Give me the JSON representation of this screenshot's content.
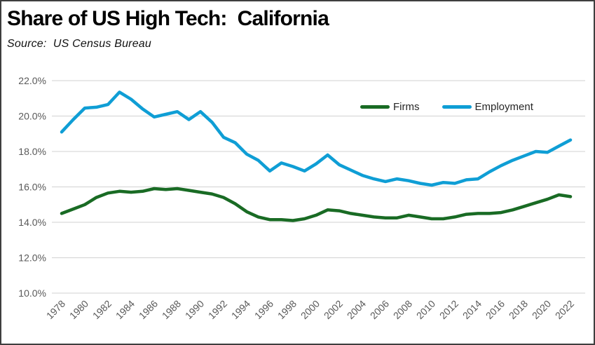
{
  "header": {
    "title": "Share of US High Tech:  California",
    "source": "Source:  US Census Bureau"
  },
  "chart_data": {
    "type": "line",
    "title": "Share of US High Tech:  California",
    "source_note": "Source:  US Census Bureau",
    "x": [
      1978,
      1979,
      1980,
      1981,
      1982,
      1983,
      1984,
      1985,
      1986,
      1987,
      1988,
      1989,
      1990,
      1991,
      1992,
      1993,
      1994,
      1995,
      1996,
      1997,
      1998,
      1999,
      2000,
      2001,
      2002,
      2003,
      2004,
      2005,
      2006,
      2007,
      2008,
      2009,
      2010,
      2011,
      2012,
      2013,
      2014,
      2015,
      2016,
      2017,
      2018,
      2019,
      2020,
      2021,
      2022
    ],
    "series": [
      {
        "name": "Firms",
        "color": "#196B24",
        "values": [
          14.5,
          14.75,
          15.0,
          15.4,
          15.65,
          15.75,
          15.7,
          15.75,
          15.9,
          15.85,
          15.9,
          15.8,
          15.7,
          15.6,
          15.4,
          15.05,
          14.6,
          14.3,
          14.15,
          14.15,
          14.1,
          14.2,
          14.4,
          14.7,
          14.65,
          14.5,
          14.4,
          14.3,
          14.25,
          14.25,
          14.4,
          14.3,
          14.2,
          14.2,
          14.3,
          14.45,
          14.5,
          14.5,
          14.55,
          14.7,
          14.9,
          15.1,
          15.3,
          15.55,
          15.45
        ]
      },
      {
        "name": "Employment",
        "color": "#0F9ED5",
        "values": [
          19.1,
          19.8,
          20.45,
          20.5,
          20.65,
          21.35,
          20.95,
          20.4,
          19.95,
          20.1,
          20.25,
          19.8,
          20.25,
          19.65,
          18.8,
          18.5,
          17.85,
          17.5,
          16.9,
          17.35,
          17.15,
          16.9,
          17.3,
          17.8,
          17.25,
          16.95,
          16.65,
          16.45,
          16.3,
          16.45,
          16.35,
          16.2,
          16.1,
          16.25,
          16.2,
          16.4,
          16.45,
          16.85,
          17.2,
          17.5,
          17.75,
          18.0,
          17.95,
          18.3,
          18.65
        ]
      }
    ],
    "ylim": [
      10,
      22
    ],
    "yticks": [
      10,
      12,
      14,
      16,
      18,
      20,
      22
    ],
    "ytick_labels": [
      "10.0%",
      "12.0%",
      "14.0%",
      "16.0%",
      "18.0%",
      "20.0%",
      "22.0%"
    ],
    "xticks": [
      1978,
      1980,
      1982,
      1984,
      1986,
      1988,
      1990,
      1992,
      1994,
      1996,
      1998,
      2000,
      2002,
      2004,
      2006,
      2008,
      2010,
      2012,
      2014,
      2016,
      2018,
      2020,
      2022
    ],
    "xtick_labels": [
      "1978",
      "1980",
      "1982",
      "1984",
      "1986",
      "1988",
      "1990",
      "1992",
      "1994",
      "1996",
      "1998",
      "2000",
      "2002",
      "2004",
      "2006",
      "2008",
      "2010",
      "2012",
      "2014",
      "2016",
      "2018",
      "2020",
      "2022"
    ],
    "grid": "horizontal-only",
    "legend_position": "top-right-inside",
    "axis_text_color": "#595959",
    "gridline_color": "#D9D9D9",
    "line_width": 4.5
  }
}
